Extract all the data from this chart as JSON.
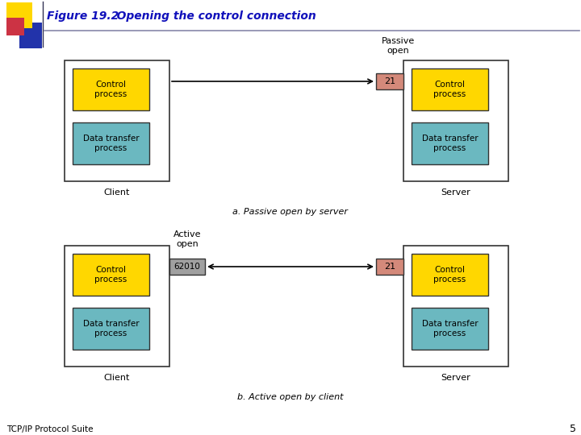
{
  "title_bold": "Figure 19.2",
  "title_italic": "   Opening the control connection",
  "bg_color": "#ffffff",
  "yellow_color": "#FFD700",
  "cyan_color": "#6BB8C0",
  "pink_color": "#D4897A",
  "gray_color": "#A0A0A0",
  "footer_text": "TCP/IP Protocol Suite",
  "page_number": "5",
  "diagram_a_caption": "a. Passive open by server",
  "diagram_b_caption": "b. Active open by client",
  "passive_open_label": "Passive\nopen",
  "active_open_label": "Active\nopen",
  "port_21": "21",
  "port_62010": "62010",
  "client_label": "Client",
  "server_label": "Server",
  "control_process": "Control\nprocess",
  "data_transfer": "Data transfer\nprocess",
  "header_line_color": "#8888AA",
  "title_color": "#1111BB"
}
